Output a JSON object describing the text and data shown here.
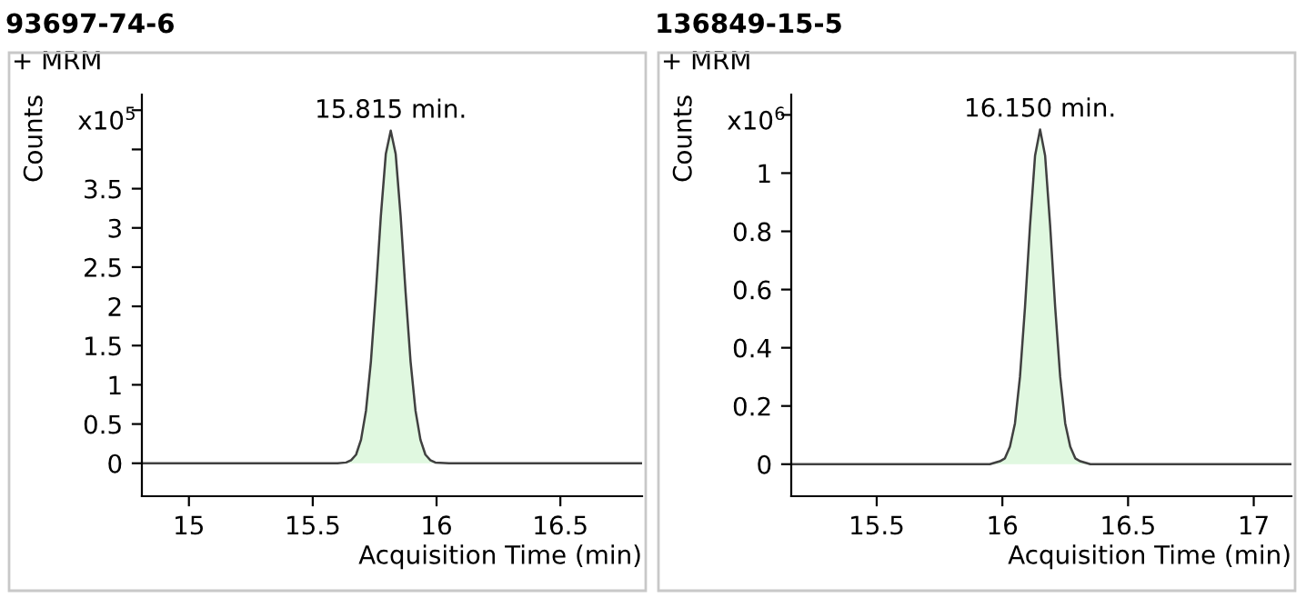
{
  "chart_data": [
    {
      "type": "area",
      "title": "93697-74-6",
      "xlabel": "Acquisition Time (min)",
      "ylabel": "Counts",
      "annotations": [
        "+ MRM",
        "x10$^{5}$",
        {
          "text": "15.815 min.",
          "x": 15.815,
          "y": 4.24
        }
      ],
      "x": [
        14.81,
        15.6,
        15.635,
        15.655,
        15.675,
        15.695,
        15.715,
        15.735,
        15.755,
        15.775,
        15.795,
        15.815,
        15.835,
        15.855,
        15.875,
        15.895,
        15.915,
        15.935,
        15.955,
        15.975,
        15.995,
        16.05,
        16.83
      ],
      "series": [
        {
          "color": "#e0f8e0",
          "values": [
            0,
            0,
            0.01,
            0.04,
            0.11,
            0.3,
            0.67,
            1.3,
            2.18,
            3.15,
            3.94,
            4.24,
            3.94,
            3.15,
            2.18,
            1.3,
            0.67,
            0.3,
            0.11,
            0.04,
            0.01,
            0,
            0
          ]
        }
      ],
      "xlim": [
        14.81,
        16.83
      ],
      "ylim": [
        -0.42,
        4.7
      ],
      "xticks": [
        15,
        15.5,
        16,
        16.5
      ],
      "yticks": [
        0,
        0.5,
        1,
        1.5,
        2,
        2.5,
        3,
        3.5,
        {
          "value": 4,
          "label": null
        },
        {
          "value": 4.5,
          "label": null
        }
      ],
      "grid": false
    },
    {
      "type": "area",
      "title": "136849-15-5",
      "xlabel": "Acquisition Time (min)",
      "ylabel": "Counts",
      "annotations": [
        "+ MRM",
        "x10$^{6}$",
        {
          "text": "16.150 min.",
          "x": 16.15,
          "y": 1.15
        }
      ],
      "x": [
        15.16,
        15.95,
        15.99,
        16.01,
        16.03,
        16.05,
        16.07,
        16.09,
        16.11,
        16.13,
        16.15,
        16.17,
        16.19,
        16.21,
        16.23,
        16.25,
        16.27,
        16.29,
        16.31,
        16.35,
        17.15
      ],
      "series": [
        {
          "color": "#e0f8e0",
          "values": [
            0,
            0,
            0.01,
            0.02,
            0.06,
            0.14,
            0.3,
            0.54,
            0.82,
            1.06,
            1.15,
            1.06,
            0.82,
            0.54,
            0.3,
            0.14,
            0.06,
            0.02,
            0.01,
            0,
            0
          ]
        }
      ],
      "xlim": [
        15.16,
        17.15
      ],
      "ylim": [
        -0.11,
        1.27
      ],
      "xticks": [
        15.5,
        16,
        16.5,
        17
      ],
      "yticks": [
        0,
        0.2,
        0.4,
        0.6,
        0.8,
        1,
        {
          "value": 1.2,
          "label": null
        }
      ],
      "grid": false
    }
  ]
}
